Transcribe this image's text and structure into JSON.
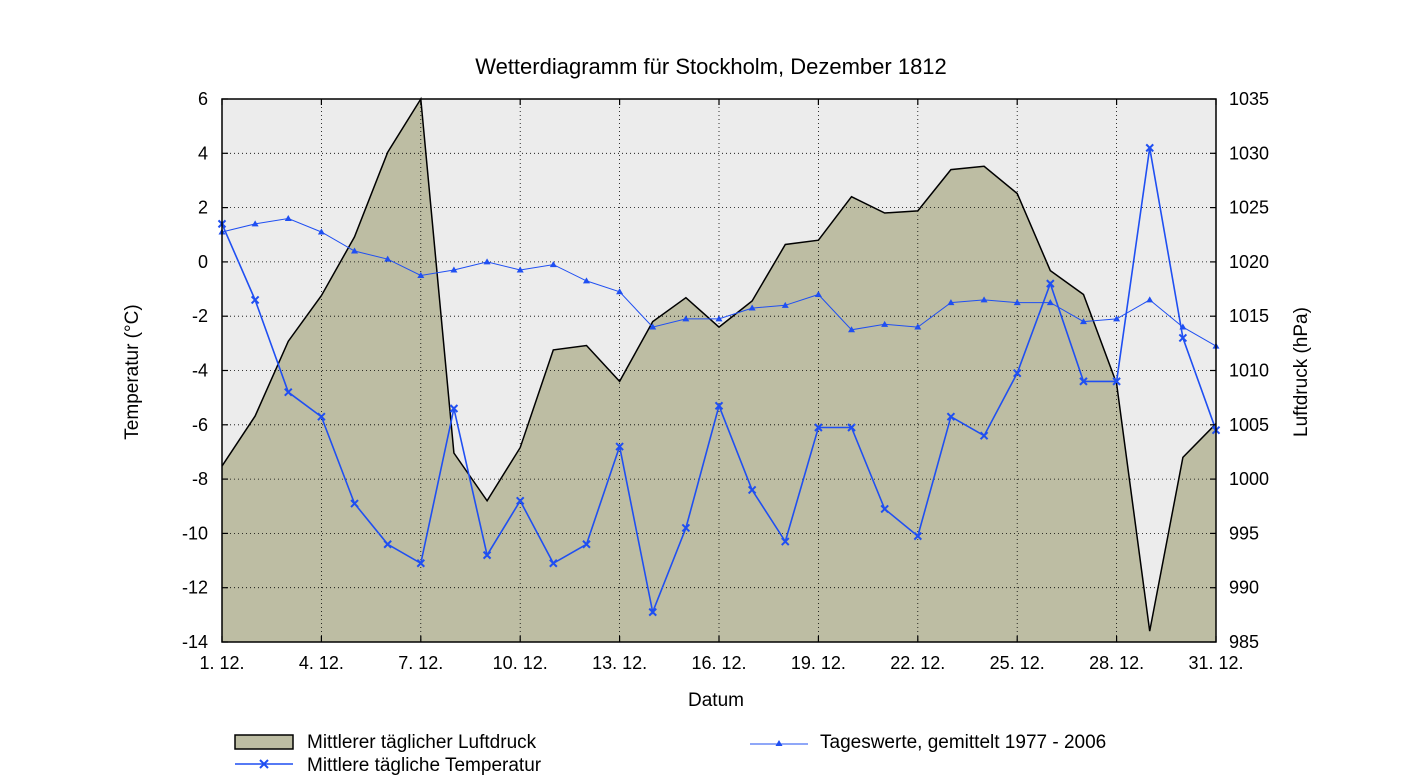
{
  "chart_data": {
    "type": "line",
    "title": "Wetterdiagramm für Stockholm, Dezember 1812",
    "xlabel": "Datum",
    "ylabel_left": "Temperatur (°C)",
    "ylabel_right": "Luftdruck (hPa)",
    "x_days": [
      1,
      2,
      3,
      4,
      5,
      6,
      7,
      8,
      9,
      10,
      11,
      12,
      13,
      14,
      15,
      16,
      17,
      18,
      19,
      20,
      21,
      22,
      23,
      24,
      25,
      26,
      27,
      28,
      29,
      30,
      31
    ],
    "x_tick_labels": [
      {
        "day": 1,
        "label": "1. 12."
      },
      {
        "day": 4,
        "label": "4. 12."
      },
      {
        "day": 7,
        "label": "7. 12."
      },
      {
        "day": 10,
        "label": "10. 12."
      },
      {
        "day": 13,
        "label": "13. 12."
      },
      {
        "day": 16,
        "label": "16. 12."
      },
      {
        "day": 19,
        "label": "19. 12."
      },
      {
        "day": 22,
        "label": "22. 12."
      },
      {
        "day": 25,
        "label": "25. 12."
      },
      {
        "day": 28,
        "label": "28. 12."
      },
      {
        "day": 31,
        "label": "31. 12."
      }
    ],
    "xlim": [
      1,
      31
    ],
    "ylim_left": [
      -14,
      6
    ],
    "yticks_left": [
      "6",
      "4",
      "2",
      "0",
      "-2",
      "-4",
      "-6",
      "-8",
      "-10",
      "-12",
      "-14"
    ],
    "ylim_right": [
      985,
      1035
    ],
    "yticks_right": [
      "1035",
      "1030",
      "1025",
      "1020",
      "1015",
      "1010",
      "1005",
      "1000",
      "995",
      "990",
      "985"
    ],
    "grid": true,
    "series": [
      {
        "name": "Mittlerer täglicher Luftdruck",
        "type": "area",
        "axis": "right",
        "color": "#bdbda3",
        "values": [
          1001.2,
          1005.8,
          1012.7,
          1016.9,
          1022.3,
          1030.1,
          1035.0,
          1002.4,
          998.0,
          1002.9,
          1011.9,
          1012.3,
          1009.0,
          1014.5,
          1016.7,
          1014.0,
          1016.4,
          1021.6,
          1022.0,
          1026.0,
          1024.5,
          1024.7,
          1028.5,
          1028.8,
          1026.3,
          1019.2,
          1017.0,
          1008.8,
          986.0,
          1002.0,
          1005.1
        ]
      },
      {
        "name": "Mittlere tägliche Temperatur",
        "type": "line",
        "axis": "left",
        "marker": "x",
        "color": "#1f4ff2",
        "values": [
          1.4,
          -1.4,
          -4.8,
          -5.7,
          -8.9,
          -10.4,
          -11.1,
          -5.4,
          -10.8,
          -8.8,
          -11.1,
          -10.4,
          -6.8,
          -12.9,
          -9.8,
          -5.3,
          -8.4,
          -10.3,
          -6.1,
          -6.1,
          -9.1,
          -10.1,
          -5.7,
          -6.4,
          -4.1,
          -0.8,
          -4.4,
          -4.4,
          4.2,
          -2.8,
          -6.2
        ]
      },
      {
        "name": "Tageswerte, gemittelt 1977 - 2006",
        "type": "line",
        "axis": "left",
        "marker": "triangle",
        "color": "#1f4ff2",
        "values": [
          1.1,
          1.4,
          1.6,
          1.1,
          0.4,
          0.1,
          -0.5,
          -0.3,
          0.0,
          -0.3,
          -0.1,
          -0.7,
          -1.1,
          -2.4,
          -2.1,
          -2.1,
          -1.7,
          -1.6,
          -1.2,
          -2.5,
          -2.3,
          -2.4,
          -1.5,
          -1.4,
          -1.5,
          -1.5,
          -2.2,
          -2.1,
          -1.4,
          -2.4,
          -3.1
        ]
      }
    ],
    "legend_position": "bottom"
  }
}
